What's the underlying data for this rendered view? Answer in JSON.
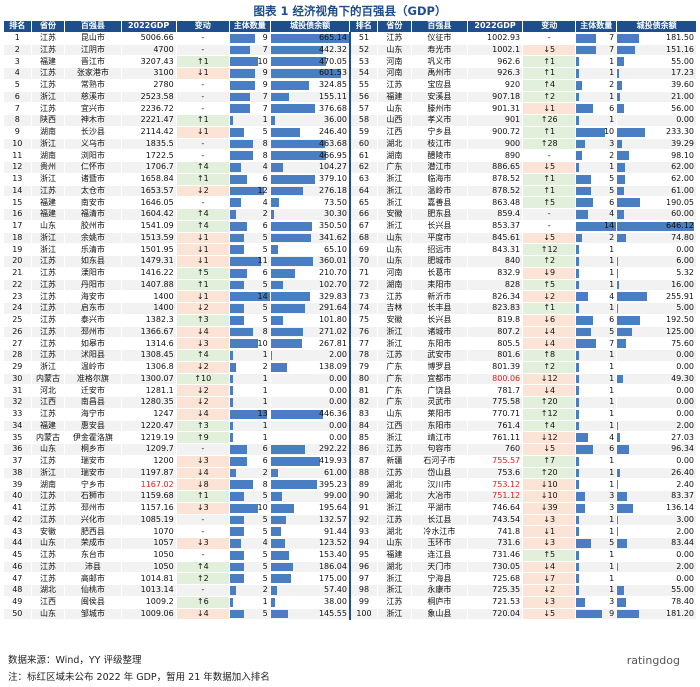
{
  "title": "图表 1 经济视角下的百强县（GDP）",
  "headers": [
    "排名",
    "省份",
    "百强县",
    "2022GDP",
    "变动",
    "主体数量",
    "城投债余额",
    "排名",
    "省份",
    "百强县",
    "2022GDP",
    "变动",
    "主体数量",
    "城投债余额"
  ],
  "max_debt": 665.14,
  "max_count": 14,
  "rows": [
    [
      [
        "1",
        "江苏",
        "昆山市",
        "5006.66",
        "-",
        "9",
        "665.14"
      ],
      [
        "51",
        "江苏",
        "仪征市",
        "1002.93",
        "-",
        "7",
        "181.50"
      ]
    ],
    [
      [
        "2",
        "江苏",
        "江阴市",
        "4700",
        "-",
        "7",
        "442.32"
      ],
      [
        "52",
        "山东",
        "寿光市",
        "1002.1",
        "↓5",
        "7",
        "151.16"
      ]
    ],
    [
      [
        "3",
        "福建",
        "晋江市",
        "3207.43",
        "↑1",
        "10",
        "470.05"
      ],
      [
        "53",
        "河南",
        "巩义市",
        "962.6",
        "↑1",
        "1",
        "55.00"
      ]
    ],
    [
      [
        "4",
        "江苏",
        "张家港市",
        "3100",
        "↓1",
        "9",
        "601.53"
      ],
      [
        "54",
        "河南",
        "禹州市",
        "926.3",
        "↑1",
        "1",
        "17.23"
      ]
    ],
    [
      [
        "5",
        "江苏",
        "常熟市",
        "2780",
        "-",
        "9",
        "324.85"
      ],
      [
        "55",
        "江苏",
        "宝应县",
        "920",
        "↑4",
        "2",
        "39.60"
      ]
    ],
    [
      [
        "6",
        "浙江",
        "慈溪市",
        "2523.58",
        "-",
        "7",
        "155.11"
      ],
      [
        "56",
        "福建",
        "安溪县",
        "907.18",
        "↑2",
        "1",
        "21.00"
      ]
    ],
    [
      [
        "7",
        "江苏",
        "宜兴市",
        "2236.72",
        "-",
        "7",
        "376.68"
      ],
      [
        "57",
        "山东",
        "滕州市",
        "901.31",
        "↓1",
        "6",
        "56.00"
      ]
    ],
    [
      [
        "8",
        "陕西",
        "神木市",
        "2221.47",
        "↑1",
        "1",
        "36.00"
      ],
      [
        "58",
        "山西",
        "孝义市",
        "901",
        "↑26",
        "1",
        "0.00"
      ]
    ],
    [
      [
        "9",
        "湖南",
        "长沙县",
        "2114.42",
        "↓1",
        "5",
        "246.40"
      ],
      [
        "59",
        "江西",
        "宁乡县",
        "900.72",
        "↑1",
        "10",
        "233.30"
      ]
    ],
    [
      [
        "10",
        "浙江",
        "义乌市",
        "1835.5",
        "-",
        "8",
        "463.68"
      ],
      [
        "60",
        "湖北",
        "枝江市",
        "900",
        "↑28",
        "3",
        "39.29"
      ]
    ],
    [
      [
        "11",
        "湖南",
        "浏阳市",
        "1722.5",
        "-",
        "8",
        "466.95"
      ],
      [
        "61",
        "湖南",
        "醴陵市",
        "890",
        "-",
        "2",
        "98.10"
      ]
    ],
    [
      [
        "12",
        "贵州",
        "仁怀市",
        "1706.7",
        "↑4",
        "4",
        "104.27"
      ],
      [
        "62",
        "广东",
        "潜江市",
        "886.65",
        "↓5",
        "1",
        "62.00"
      ]
    ],
    [
      [
        "13",
        "浙江",
        "诸暨市",
        "1658.84",
        "↑1",
        "6",
        "379.10"
      ],
      [
        "63",
        "浙江",
        "临海市",
        "878.52",
        "↑1",
        "5",
        "62.00"
      ]
    ],
    [
      [
        "14",
        "江苏",
        "太仓市",
        "1653.57",
        "↓2",
        "12",
        "276.18"
      ],
      [
        "64",
        "浙江",
        "温岭市",
        "878.52",
        "↑1",
        "5",
        "61.00"
      ]
    ],
    [
      [
        "15",
        "福建",
        "南安市",
        "1646.05",
        "-",
        "4",
        "73.50"
      ],
      [
        "65",
        "浙江",
        "嘉善县",
        "863.48",
        "↑5",
        "6",
        "190.05"
      ]
    ],
    [
      [
        "16",
        "福建",
        "福清市",
        "1604.42",
        "↑4",
        "2",
        "30.30"
      ],
      [
        "66",
        "安徽",
        "肥东县",
        "859.4",
        "-",
        "4",
        "60.00"
      ]
    ],
    [
      [
        "17",
        "山东",
        "胶州市",
        "1541.09",
        "↑4",
        "6",
        "350.50"
      ],
      [
        "67",
        "浙江",
        "长兴县",
        "853.37",
        "-",
        "14",
        "646.12"
      ]
    ],
    [
      [
        "18",
        "浙江",
        "余姚市",
        "1513.59",
        "↓1",
        "5",
        "341.62"
      ],
      [
        "68",
        "山东",
        "平度市",
        "845.61",
        "↓5",
        "2",
        "74.80"
      ]
    ],
    [
      [
        "19",
        "浙江",
        "乐清市",
        "1501.95",
        "↓1",
        "5",
        "65.10"
      ],
      [
        "69",
        "山东",
        "招远市",
        "843.31",
        "↑12",
        "1",
        "0.00"
      ]
    ],
    [
      [
        "20",
        "江苏",
        "如东县",
        "1479.31",
        "↓1",
        "11",
        "360.01"
      ],
      [
        "70",
        "山东",
        "肥城市",
        "840",
        "↑2",
        "1",
        "6.00"
      ]
    ],
    [
      [
        "21",
        "江苏",
        "溧阳市",
        "1416.22",
        "↑5",
        "6",
        "210.70"
      ],
      [
        "71",
        "河南",
        "长葛市",
        "832.9",
        "↓9",
        "1",
        "5.32"
      ]
    ],
    [
      [
        "22",
        "江苏",
        "丹阳市",
        "1407.88",
        "↑1",
        "5",
        "102.70"
      ],
      [
        "72",
        "湖南",
        "耒阳市",
        "828",
        "↑5",
        "1",
        "16.00"
      ]
    ],
    [
      [
        "23",
        "江苏",
        "海安市",
        "1400",
        "↓1",
        "14",
        "329.83"
      ],
      [
        "73",
        "江苏",
        "新沂市",
        "826.34",
        "↓2",
        "4",
        "255.91"
      ]
    ],
    [
      [
        "24",
        "江苏",
        "启东市",
        "1400",
        "↓2",
        "5",
        "291.64"
      ],
      [
        "74",
        "吉林",
        "长丰县",
        "823.83",
        "↑1",
        "1",
        "5.00"
      ]
    ],
    [
      [
        "25",
        "江苏",
        "泰兴市",
        "1382.3",
        "↑3",
        "5",
        "101.80"
      ],
      [
        "75",
        "安徽",
        "长兴县",
        "819.8",
        "↓6",
        "6",
        "192.50"
      ]
    ],
    [
      [
        "26",
        "江苏",
        "邳州市",
        "1366.67",
        "↓4",
        "8",
        "271.02"
      ],
      [
        "76",
        "浙江",
        "诸城市",
        "807.2",
        "↓4",
        "5",
        "125.00"
      ]
    ],
    [
      [
        "27",
        "江苏",
        "如皋市",
        "1314.6",
        "↓3",
        "10",
        "267.81"
      ],
      [
        "77",
        "浙江",
        "东阳市",
        "805.5",
        "↓4",
        "7",
        "75.60"
      ]
    ],
    [
      [
        "28",
        "江苏",
        "沭阳县",
        "1308.45",
        "↑4",
        "1",
        "2.00"
      ],
      [
        "78",
        "江苏",
        "武安市",
        "801.6",
        "↑8",
        "1",
        "0.00"
      ]
    ],
    [
      [
        "29",
        "浙江",
        "温岭市",
        "1306.8",
        "↓2",
        "2",
        "138.09"
      ],
      [
        "79",
        "广东",
        "博罗县",
        "801.39",
        "↑2",
        "1",
        "0.00"
      ]
    ],
    [
      [
        "30",
        "内蒙古",
        "准格尔旗",
        "1300.07",
        "↑10",
        "1",
        "0.00"
      ],
      [
        "80",
        "广东",
        "宜都市",
        "800.06",
        "↓12",
        "1",
        "49.30"
      ]
    ],
    [
      [
        "31",
        "河北",
        "迁安市",
        "1281.1",
        "↓2",
        "1",
        "0.00"
      ],
      [
        "81",
        "广东",
        "广饶县",
        "781.7",
        "↓4",
        "1",
        "0.00"
      ]
    ],
    [
      [
        "32",
        "江西",
        "南昌县",
        "1280.35",
        "↓2",
        "1",
        "0.00"
      ],
      [
        "82",
        "广东",
        "灵武市",
        "775.58",
        "↑20",
        "1",
        "0.00"
      ]
    ],
    [
      [
        "33",
        "江苏",
        "海宁市",
        "1247",
        "↓4",
        "13",
        "446.36"
      ],
      [
        "83",
        "山东",
        "莱阳市",
        "770.71",
        "↑12",
        "1",
        "0.00"
      ]
    ],
    [
      [
        "34",
        "福建",
        "惠安县",
        "1220.47",
        "↑3",
        "1",
        "0.00"
      ],
      [
        "84",
        "江西",
        "东阳市",
        "761.4",
        "↑4",
        "1",
        "2.00"
      ]
    ],
    [
      [
        "35",
        "内蒙古",
        "伊金霍洛旗",
        "1219.19",
        "↑9",
        "1",
        "0.00"
      ],
      [
        "85",
        "浙江",
        "靖江市",
        "761.11",
        "↓12",
        "4",
        "27.03"
      ]
    ],
    [
      [
        "36",
        "山东",
        "桐乡市",
        "1209.7",
        "-",
        "6",
        "292.22"
      ],
      [
        "86",
        "江苏",
        "句容市",
        "760",
        "↓5",
        "6",
        "96.34"
      ]
    ],
    [
      [
        "37",
        "江苏",
        "瑞安市",
        "1200",
        "↓3",
        "6",
        "419.93"
      ],
      [
        "87",
        "新疆",
        "石河子市",
        "755.57",
        "↑7",
        "1",
        "0.00"
      ]
    ],
    [
      [
        "38",
        "浙江",
        "瑞安市",
        "1197.87",
        "↓4",
        "2",
        "61.00"
      ],
      [
        "88",
        "江苏",
        "岱山县",
        "753.6",
        "↑20",
        "1",
        "26.40"
      ]
    ],
    [
      [
        "39",
        "湖南",
        "宁乡市",
        "1167.02",
        "↓8",
        "8",
        "395.23"
      ],
      [
        "89",
        "湖北",
        "汉川市",
        "753.12",
        "↓10",
        "1",
        "2.40"
      ]
    ],
    [
      [
        "40",
        "江苏",
        "石狮市",
        "1159.68",
        "↑1",
        "5",
        "99.00"
      ],
      [
        "90",
        "湖北",
        "大冶市",
        "751.12",
        "↓10",
        "3",
        "83.37"
      ]
    ],
    [
      [
        "41",
        "江苏",
        "邳州市",
        "1157.16",
        "↓3",
        "10",
        "195.64"
      ],
      [
        "91",
        "浙江",
        "平湖市",
        "746.64",
        "↓39",
        "3",
        "136.14"
      ]
    ],
    [
      [
        "42",
        "江苏",
        "兴化市",
        "1085.19",
        "-",
        "5",
        "132.57"
      ],
      [
        "92",
        "江苏",
        "长江县",
        "743.54",
        "↓3",
        "1",
        "3.00"
      ]
    ],
    [
      [
        "43",
        "安徽",
        "肥西县",
        "1070",
        "-",
        "5",
        "91.44"
      ],
      [
        "93",
        "湖北",
        "冷水江市",
        "741.8",
        "↓1",
        "1",
        "2.00"
      ]
    ],
    [
      [
        "44",
        "山东",
        "荣成市",
        "1057",
        "↓3",
        "4",
        "123.52"
      ],
      [
        "94",
        "山东",
        "玉环市",
        "731.6",
        "↓3",
        "5",
        "83.44"
      ]
    ],
    [
      [
        "45",
        "江苏",
        "东台市",
        "1050",
        "-",
        "5",
        "153.40"
      ],
      [
        "95",
        "福建",
        "连江县",
        "731.46",
        "↑5",
        "1",
        "0.00"
      ]
    ],
    [
      [
        "46",
        "江苏",
        "沛县",
        "1050",
        "↑4",
        "5",
        "186.04"
      ],
      [
        "96",
        "湖北",
        "天门市",
        "730.05",
        "↓4",
        "1",
        "2.00"
      ]
    ],
    [
      [
        "47",
        "江苏",
        "高邮市",
        "1014.81",
        "↑2",
        "5",
        "175.00"
      ],
      [
        "97",
        "浙江",
        "宁海县",
        "725.68",
        "↓7",
        "1",
        "0.00"
      ]
    ],
    [
      [
        "48",
        "湖北",
        "仙桃市",
        "1013.14",
        "-",
        "2",
        "57.40"
      ],
      [
        "98",
        "浙江",
        "永康市",
        "725.35",
        "↓2",
        "1",
        "55.00"
      ]
    ],
    [
      [
        "49",
        "江西",
        "闽侯县",
        "1009.2",
        "↑6",
        "1",
        "38.00"
      ],
      [
        "99",
        "江苏",
        "桐庐市",
        "721.53",
        "↓3",
        "3",
        "78.40"
      ]
    ],
    [
      [
        "50",
        "山东",
        "邹城市",
        "1009.06",
        "↓4",
        "5",
        "145.55"
      ],
      [
        "100",
        "浙江",
        "象山县",
        "720.04",
        "↓5",
        "9",
        "181.20"
      ]
    ]
  ],
  "red_gdp": [
    "1167.02",
    "800.06",
    "755.57",
    "753.12",
    "751.12"
  ],
  "notes": {
    "source": "数据来源：Wind，YY 评级整理",
    "note": "注：标红区域未公布 2022 年 GDP，暂用 21 年数据加入排名"
  },
  "watermark": "ratingdog"
}
